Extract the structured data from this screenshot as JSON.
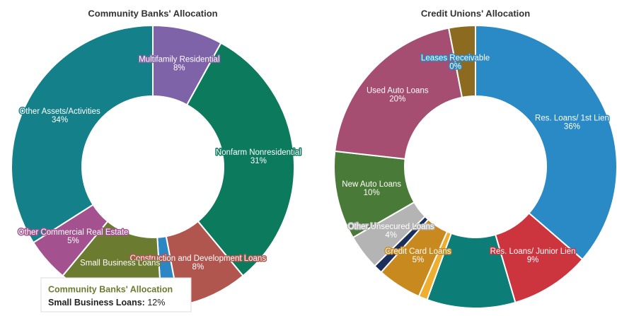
{
  "chart_data": [
    {
      "type": "pie",
      "title": "Community Banks' Allocation",
      "categories": [
        "Multifamily Residential",
        "Nonfarm Nonresidential",
        "Construction and Development Loans",
        null,
        "Small Business Loans",
        "Other Commercial Real Estate",
        "Other Assets/Activities"
      ],
      "values": [
        8,
        31,
        8,
        2,
        12,
        5,
        34
      ],
      "value_labels": [
        "8%",
        "31%",
        "8%",
        null,
        null,
        "5%",
        "34%"
      ],
      "colors": [
        "#7f63a9",
        "#0c7a5c",
        "#b1554f",
        "#2b86c3",
        "#6b7b2f",
        "#a3528f",
        "#14808a"
      ],
      "tooltip": {
        "title": "Community Banks' Allocation",
        "label": "Small Business Loans:",
        "value": "12%"
      }
    },
    {
      "type": "pie",
      "title": "Credit Unions' Allocation",
      "categories": [
        "Res. Loans/ 1st Lien",
        "Res. Loans/ Junior Lien",
        null,
        null,
        "Credit Card Loans",
        null,
        "Other Unsecured Loans",
        "New Auto Loans",
        "Used Auto Loans",
        "Leases Receivable",
        null
      ],
      "values": [
        36,
        9,
        10,
        1,
        5,
        1,
        4,
        10,
        20,
        0,
        3
      ],
      "value_labels": [
        "36%",
        "9%",
        null,
        null,
        "5%",
        null,
        "4%",
        "10%",
        "20%",
        "0%",
        null
      ],
      "colors": [
        "#2a8ac5",
        "#cc343e",
        "#0d7d77",
        "#eeae30",
        "#c8891f",
        "#1b2f5b",
        "#b4b4b4",
        "#4a7a37",
        "#a54e71",
        "#2a8ac5",
        "#8c6a20"
      ]
    }
  ]
}
